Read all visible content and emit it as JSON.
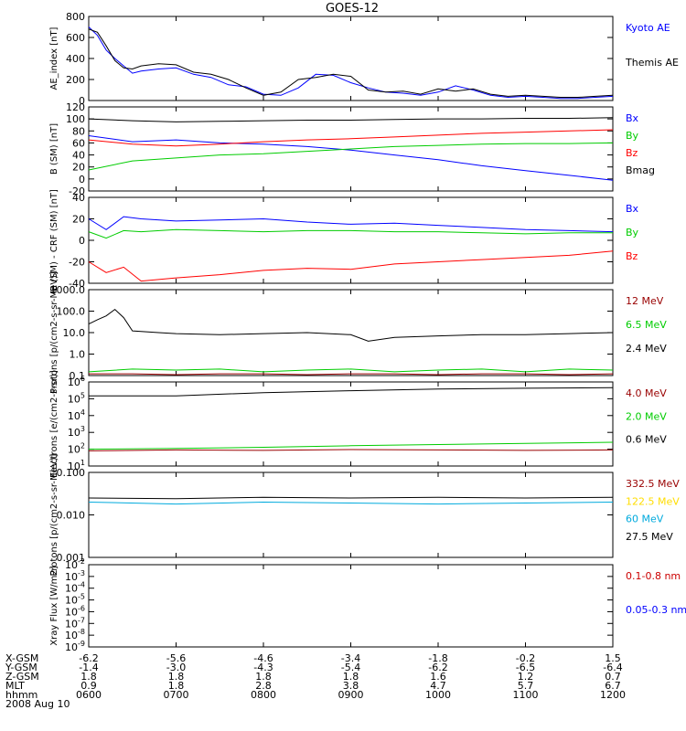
{
  "title": "GOES-12",
  "chart_data": [
    {
      "type": "line",
      "ylabel": "AE_index [nT]",
      "ylim": [
        0,
        800
      ],
      "y_ticks": [
        "0",
        "200",
        "400",
        "600",
        "800"
      ],
      "series": [
        {
          "name": "Kyoto AE",
          "color": "#0000ff",
          "x": [
            6.0,
            6.1,
            6.2,
            6.3,
            6.4,
            6.5,
            6.6,
            6.8,
            7.0,
            7.2,
            7.4,
            7.6,
            7.8,
            8.0,
            8.2,
            8.4,
            8.6,
            8.8,
            9.0,
            9.2,
            9.4,
            9.6,
            9.8,
            10.0,
            10.2,
            10.4,
            10.6,
            10.8,
            11.0,
            11.2,
            11.4,
            11.6,
            11.8,
            12.0
          ],
          "y": [
            700,
            620,
            480,
            400,
            330,
            260,
            280,
            300,
            310,
            250,
            220,
            150,
            130,
            60,
            50,
            120,
            250,
            240,
            170,
            120,
            80,
            70,
            50,
            80,
            140,
            100,
            50,
            30,
            40,
            30,
            20,
            20,
            30,
            40
          ]
        },
        {
          "name": "Themis AE",
          "color": "#000000",
          "x": [
            6.0,
            6.1,
            6.2,
            6.3,
            6.4,
            6.5,
            6.6,
            6.8,
            7.0,
            7.2,
            7.4,
            7.6,
            7.8,
            8.0,
            8.2,
            8.4,
            8.6,
            8.8,
            9.0,
            9.2,
            9.4,
            9.6,
            9.8,
            10.0,
            10.2,
            10.4,
            10.6,
            10.8,
            11.0,
            11.2,
            11.4,
            11.6,
            11.8,
            12.0
          ],
          "y": [
            680,
            650,
            520,
            380,
            310,
            300,
            330,
            350,
            340,
            270,
            250,
            200,
            120,
            50,
            80,
            200,
            220,
            250,
            230,
            100,
            80,
            90,
            60,
            110,
            90,
            110,
            60,
            40,
            50,
            40,
            30,
            30,
            40,
            50
          ]
        }
      ]
    },
    {
      "type": "line",
      "ylabel": "B (SM) [nT]",
      "ylim": [
        -20,
        120
      ],
      "y_ticks": [
        "-20",
        "0",
        "20",
        "40",
        "60",
        "80",
        "100",
        "120"
      ],
      "series": [
        {
          "name": "Bx",
          "color": "#0000ff",
          "x": [
            6.0,
            6.5,
            7.0,
            7.5,
            8.0,
            8.5,
            9.0,
            9.5,
            10.0,
            10.5,
            11.0,
            11.5,
            12.0
          ],
          "y": [
            72,
            62,
            65,
            60,
            58,
            54,
            48,
            40,
            32,
            22,
            14,
            6,
            -2
          ]
        },
        {
          "name": "By",
          "color": "#00cc00",
          "x": [
            6.0,
            6.5,
            7.0,
            7.5,
            8.0,
            8.5,
            9.0,
            9.5,
            10.0,
            10.5,
            11.0,
            11.5,
            12.0
          ],
          "y": [
            15,
            30,
            35,
            40,
            42,
            46,
            50,
            54,
            56,
            58,
            59,
            59,
            60
          ]
        },
        {
          "name": "Bz",
          "color": "#ff0000",
          "x": [
            6.0,
            6.5,
            7.0,
            7.5,
            8.0,
            8.5,
            9.0,
            9.5,
            10.0,
            10.5,
            11.0,
            11.5,
            12.0
          ],
          "y": [
            65,
            58,
            55,
            58,
            62,
            65,
            67,
            70,
            73,
            76,
            78,
            80,
            82
          ]
        },
        {
          "name": "Bmag",
          "color": "#000000",
          "x": [
            6.0,
            6.5,
            7.0,
            7.5,
            8.0,
            8.5,
            9.0,
            9.5,
            10.0,
            10.5,
            11.0,
            11.5,
            12.0
          ],
          "y": [
            100,
            97,
            95,
            96,
            97,
            98,
            98,
            99,
            100,
            100,
            101,
            101,
            102
          ]
        }
      ]
    },
    {
      "type": "line",
      "ylabel": "B (SM) - CRF (SM) [nT]",
      "ylim": [
        -40,
        40
      ],
      "y_ticks": [
        "-40",
        "-20",
        "0",
        "20",
        "40"
      ],
      "series": [
        {
          "name": "Bx",
          "color": "#0000ff",
          "x": [
            6.0,
            6.2,
            6.4,
            6.6,
            7.0,
            7.5,
            8.0,
            8.5,
            9.0,
            9.5,
            10.0,
            10.5,
            11.0,
            11.5,
            12.0
          ],
          "y": [
            20,
            10,
            22,
            20,
            18,
            19,
            20,
            17,
            15,
            16,
            14,
            12,
            10,
            9,
            8
          ]
        },
        {
          "name": "By",
          "color": "#00cc00",
          "x": [
            6.0,
            6.2,
            6.4,
            6.6,
            7.0,
            7.5,
            8.0,
            8.5,
            9.0,
            9.5,
            10.0,
            10.5,
            11.0,
            11.5,
            12.0
          ],
          "y": [
            8,
            2,
            9,
            8,
            10,
            9,
            8,
            9,
            9,
            8,
            8,
            7,
            6,
            7,
            7
          ]
        },
        {
          "name": "Bz",
          "color": "#ff0000",
          "x": [
            6.0,
            6.2,
            6.4,
            6.6,
            7.0,
            7.5,
            8.0,
            8.5,
            9.0,
            9.5,
            10.0,
            10.5,
            11.0,
            11.5,
            12.0
          ],
          "y": [
            -20,
            -30,
            -25,
            -38,
            -35,
            -32,
            -28,
            -26,
            -27,
            -22,
            -20,
            -18,
            -16,
            -14,
            -10
          ]
        }
      ]
    },
    {
      "type": "line",
      "ylabel": "Protons [p/(cm2-s-sr-MeV)]",
      "yscale": "log",
      "ylim": [
        0.1,
        1000
      ],
      "y_ticks": [
        "0.1",
        "1.0",
        "10.0",
        "100.0",
        "1000.0"
      ],
      "series": [
        {
          "name": "12 MeV",
          "color": "#990000",
          "x": [
            6.0,
            6.5,
            7.0,
            7.5,
            8.0,
            8.5,
            9.0,
            9.5,
            10.0,
            10.5,
            11.0,
            11.5,
            12.0
          ],
          "y": [
            0.12,
            0.12,
            0.11,
            0.12,
            0.12,
            0.11,
            0.12,
            0.12,
            0.11,
            0.12,
            0.12,
            0.11,
            0.12
          ]
        },
        {
          "name": "6.5 MeV",
          "color": "#00cc00",
          "x": [
            6.0,
            6.5,
            7.0,
            7.5,
            8.0,
            8.5,
            9.0,
            9.5,
            10.0,
            10.5,
            11.0,
            11.5,
            12.0
          ],
          "y": [
            0.15,
            0.2,
            0.18,
            0.2,
            0.15,
            0.18,
            0.2,
            0.15,
            0.18,
            0.2,
            0.15,
            0.2,
            0.18
          ]
        },
        {
          "name": "2.4 MeV",
          "color": "#000000",
          "x": [
            6.0,
            6.1,
            6.2,
            6.3,
            6.4,
            6.5,
            6.8,
            7.0,
            7.5,
            8.0,
            8.5,
            9.0,
            9.2,
            9.5,
            10.0,
            10.5,
            11.0,
            11.5,
            12.0
          ],
          "y": [
            25,
            40,
            60,
            120,
            50,
            12,
            10,
            9,
            8,
            9,
            10,
            8,
            4,
            6,
            7,
            8,
            8,
            9,
            10
          ]
        }
      ]
    },
    {
      "type": "line",
      "ylabel": "Electrons [e/(cm2-s-sr)]",
      "yscale": "log",
      "ylim": [
        10,
        1000000
      ],
      "y_ticks": [
        "10^1",
        "10^2",
        "10^3",
        "10^4",
        "10^5",
        "10^6"
      ],
      "series": [
        {
          "name": "4.0 MeV",
          "color": "#990000",
          "x": [
            6.0,
            7.0,
            8.0,
            9.0,
            10.0,
            11.0,
            12.0
          ],
          "y": [
            80,
            90,
            85,
            95,
            90,
            85,
            90
          ]
        },
        {
          "name": "2.0 MeV",
          "color": "#00cc00",
          "x": [
            6.0,
            7.0,
            8.0,
            9.0,
            10.0,
            11.0,
            12.0
          ],
          "y": [
            100,
            110,
            130,
            160,
            190,
            220,
            260
          ]
        },
        {
          "name": "0.6 MeV",
          "color": "#000000",
          "x": [
            6.0,
            7.0,
            8.0,
            9.0,
            10.0,
            11.0,
            12.0
          ],
          "y": [
            150000,
            150000,
            230000,
            300000,
            380000,
            420000,
            460000
          ]
        }
      ]
    },
    {
      "type": "line",
      "ylabel": "Protons [p/(cm2-s-sr-MeV)]",
      "yscale": "log",
      "ylim": [
        0.001,
        0.1
      ],
      "y_ticks": [
        "0.001",
        "0.010",
        "0.100"
      ],
      "series": [
        {
          "name": "332.5 MeV",
          "color": "#990000",
          "x": [],
          "y": []
        },
        {
          "name": "122.5 MeV",
          "color": "#ffdd00",
          "x": [],
          "y": []
        },
        {
          "name": "60 MeV",
          "color": "#00aadd",
          "x": [
            6.0,
            7.0,
            8.0,
            9.0,
            10.0,
            11.0,
            12.0
          ],
          "y": [
            0.02,
            0.018,
            0.02,
            0.019,
            0.018,
            0.019,
            0.02
          ]
        },
        {
          "name": "27.5 MeV",
          "color": "#000000",
          "x": [
            6.0,
            7.0,
            8.0,
            9.0,
            10.0,
            11.0,
            12.0
          ],
          "y": [
            0.025,
            0.024,
            0.026,
            0.025,
            0.026,
            0.025,
            0.026
          ]
        }
      ]
    },
    {
      "type": "line",
      "ylabel": "Xray Flux [W/m2]",
      "yscale": "log",
      "ylim": [
        1e-09,
        0.01
      ],
      "y_ticks": [
        "10^-9",
        "10^-8",
        "10^-7",
        "10^-6",
        "10^-5",
        "10^-4",
        "10^-3",
        "10^-2"
      ],
      "series": [
        {
          "name": "0.1-0.8 nm",
          "color": "#cc0000",
          "x": [],
          "y": []
        },
        {
          "name": "0.05-0.3 nm",
          "color": "#0000ff",
          "x": [],
          "y": []
        }
      ]
    }
  ],
  "x_axis": {
    "xlim": [
      6.0,
      12.0
    ],
    "rows": [
      {
        "label": "X-GSM",
        "values": [
          "-6.2",
          "-5.6",
          "-4.6",
          "-3.4",
          "-1.8",
          "-0.2",
          "1.5"
        ]
      },
      {
        "label": "Y-GSM",
        "values": [
          "-1.4",
          "-3.0",
          "-4.3",
          "-5.4",
          "-6.2",
          "-6.5",
          "-6.4"
        ]
      },
      {
        "label": "Z-GSM",
        "values": [
          "1.8",
          "1.8",
          "1.8",
          "1.8",
          "1.6",
          "1.2",
          "0.7"
        ]
      },
      {
        "label": "MLT",
        "values": [
          "0.9",
          "1.8",
          "2.8",
          "3.8",
          "4.7",
          "5.7",
          "6.7"
        ]
      },
      {
        "label": "hhmm",
        "values": [
          "0600",
          "0700",
          "0800",
          "0900",
          "1000",
          "1100",
          "1200"
        ]
      }
    ],
    "date": "2008 Aug 10"
  }
}
